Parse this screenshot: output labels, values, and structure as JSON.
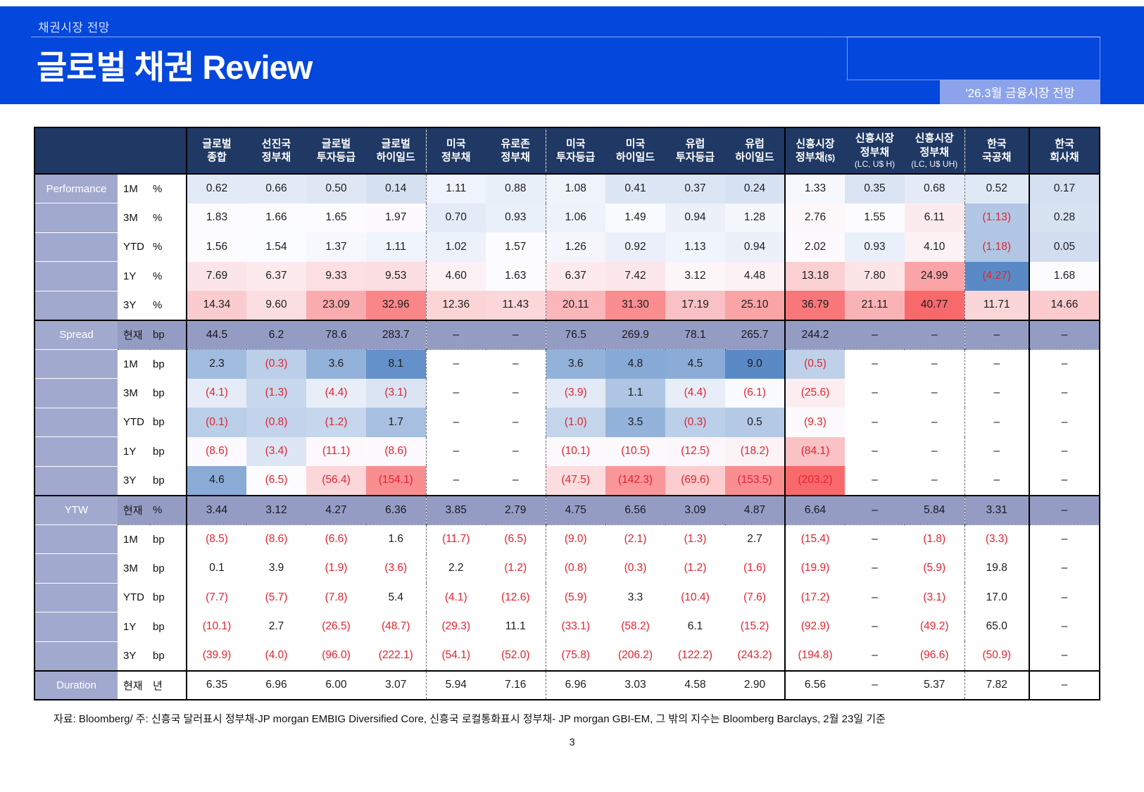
{
  "page": {
    "kicker": "채권시장 전망",
    "title": "글로벌 채권 Review",
    "badge": "'26.3월 금융시장 전망",
    "footnote": "자료: Bloomberg/ 주: 신흥국 달러표시 정부채-JP morgan EMBIG Diversified Core, 신흥국 로컬통화표시 정부채- JP morgan GBI-EM, 그 밖의 지수는 Bloomberg Barclays, 2월 23일 기준",
    "page_number": "3"
  },
  "colors": {
    "header_blue": "#0347DC",
    "badge_blue": "#8CA3EC",
    "table_header_navy": "#1F3864",
    "label_lavender": "#A2A9CE",
    "snapshot_lavender": "#959CC4",
    "negative_red": "#E32430",
    "scale_blue": "#5A8AC6",
    "scale_white": "#FCFCFF",
    "scale_red": "#F8696B"
  },
  "table": {
    "columns": [
      {
        "lines": [
          "글로벌",
          "종합"
        ]
      },
      {
        "lines": [
          "선진국",
          "정부채"
        ]
      },
      {
        "lines": [
          "글로벌",
          "투자등급"
        ]
      },
      {
        "lines": [
          "글로벌",
          "하이일드"
        ]
      },
      {
        "lines": [
          "미국",
          "정부채"
        ]
      },
      {
        "lines": [
          "유로존",
          "정부채"
        ]
      },
      {
        "lines": [
          "미국",
          "투자등급"
        ]
      },
      {
        "lines": [
          "미국",
          "하이일드"
        ]
      },
      {
        "lines": [
          "유럽",
          "투자등급"
        ]
      },
      {
        "lines": [
          "유럽",
          "하이일드"
        ]
      },
      {
        "lines": [
          "신흥시장",
          "정부채"
        ],
        "note_inline": "($)"
      },
      {
        "lines": [
          "신흥시장",
          "정부채"
        ],
        "subnote": "(LC, U$ H)"
      },
      {
        "lines": [
          "신흥시장",
          "정부채"
        ],
        "subnote": "(LC, U$ UH)"
      },
      {
        "lines": [
          "한국",
          "국공채"
        ]
      },
      {
        "lines": [
          "한국",
          "회사채"
        ]
      }
    ],
    "sections": [
      {
        "name": "Performance",
        "heatmap": {
          "min": -4.27,
          "mid": 1.56,
          "max": 40.77,
          "min_color": "#5A8AC6",
          "mid_color": "#FCFCFF",
          "max_color": "#F8696B"
        },
        "rows": [
          {
            "period": "1M",
            "unit": "%",
            "values": [
              "0.62",
              "0.66",
              "0.50",
              "0.14",
              "1.11",
              "0.88",
              "1.08",
              "0.41",
              "0.37",
              "0.24",
              "1.33",
              "0.35",
              "0.68",
              "0.52",
              "0.17"
            ]
          },
          {
            "period": "3M",
            "unit": "%",
            "values": [
              "1.83",
              "1.66",
              "1.65",
              "1.97",
              "0.70",
              "0.93",
              "1.06",
              "1.49",
              "0.94",
              "1.28",
              "2.76",
              "1.55",
              "6.11",
              "(1.13)",
              "0.28"
            ]
          },
          {
            "period": "YTD",
            "unit": "%",
            "values": [
              "1.56",
              "1.54",
              "1.37",
              "1.11",
              "1.02",
              "1.57",
              "1.26",
              "0.92",
              "1.13",
              "0.94",
              "2.02",
              "0.93",
              "4.10",
              "(1.18)",
              "0.05"
            ]
          },
          {
            "period": "1Y",
            "unit": "%",
            "values": [
              "7.69",
              "6.37",
              "9.33",
              "9.53",
              "4.60",
              "1.63",
              "6.37",
              "7.42",
              "3.12",
              "4.48",
              "13.18",
              "7.80",
              "24.99",
              "(4.27)",
              "1.68"
            ]
          },
          {
            "period": "3Y",
            "unit": "%",
            "values": [
              "14.34",
              "9.60",
              "23.09",
              "32.96",
              "12.36",
              "11.43",
              "20.11",
              "31.30",
              "17.19",
              "25.10",
              "36.79",
              "21.11",
              "40.77",
              "11.71",
              "14.66"
            ]
          }
        ]
      },
      {
        "name": "Spread",
        "heatmap": {
          "min": -203.2,
          "mid": -6.3,
          "max": 9.0,
          "min_color": "#F8696B",
          "mid_color": "#FCFCFF",
          "max_color": "#5A8AC6"
        },
        "rows": [
          {
            "period": "현재",
            "unit": "bp",
            "snapshot": true,
            "values": [
              "44.5",
              "6.2",
              "78.6",
              "283.7",
              "–",
              "–",
              "76.5",
              "269.9",
              "78.1",
              "265.7",
              "244.2",
              "–",
              "–",
              "–",
              "–"
            ]
          },
          {
            "period": "1M",
            "unit": "bp",
            "values": [
              "2.3",
              "(0.3)",
              "3.6",
              "8.1",
              "–",
              "–",
              "3.6",
              "4.8",
              "4.5",
              "9.0",
              "(0.5)",
              "–",
              "–",
              "–",
              "–"
            ]
          },
          {
            "period": "3M",
            "unit": "bp",
            "values": [
              "(4.1)",
              "(1.3)",
              "(4.4)",
              "(3.1)",
              "–",
              "–",
              "(3.9)",
              "1.1",
              "(4.4)",
              "(6.1)",
              "(25.6)",
              "–",
              "–",
              "–",
              "–"
            ]
          },
          {
            "period": "YTD",
            "unit": "bp",
            "values": [
              "(0.1)",
              "(0.8)",
              "(1.2)",
              "1.7",
              "–",
              "–",
              "(1.0)",
              "3.5",
              "(0.3)",
              "0.5",
              "(9.3)",
              "–",
              "–",
              "–",
              "–"
            ]
          },
          {
            "period": "1Y",
            "unit": "bp",
            "values": [
              "(8.6)",
              "(3.4)",
              "(11.1)",
              "(8.6)",
              "–",
              "–",
              "(10.1)",
              "(10.5)",
              "(12.5)",
              "(18.2)",
              "(84.1)",
              "–",
              "–",
              "–",
              "–"
            ]
          },
          {
            "period": "3Y",
            "unit": "bp",
            "values": [
              "4.6",
              "(6.5)",
              "(56.4)",
              "(154.1)",
              "–",
              "–",
              "(47.5)",
              "(142.3)",
              "(69.6)",
              "(153.5)",
              "(203.2)",
              "–",
              "–",
              "–",
              "–"
            ]
          }
        ]
      },
      {
        "name": "YTW",
        "heatmap": null,
        "rows": [
          {
            "period": "현재",
            "unit": "%",
            "snapshot": true,
            "values": [
              "3.44",
              "3.12",
              "4.27",
              "6.36",
              "3.85",
              "2.79",
              "4.75",
              "6.56",
              "3.09",
              "4.87",
              "6.64",
              "–",
              "5.84",
              "3.31",
              "–"
            ]
          },
          {
            "period": "1M",
            "unit": "bp",
            "values": [
              "(8.5)",
              "(8.6)",
              "(6.6)",
              "1.6",
              "(11.7)",
              "(6.5)",
              "(9.0)",
              "(2.1)",
              "(1.3)",
              "2.7",
              "(15.4)",
              "–",
              "(1.8)",
              "(3.3)",
              "–"
            ]
          },
          {
            "period": "3M",
            "unit": "bp",
            "values": [
              "0.1",
              "3.9",
              "(1.9)",
              "(3.6)",
              "2.2",
              "(1.2)",
              "(0.8)",
              "(0.3)",
              "(1.2)",
              "(1.6)",
              "(19.9)",
              "–",
              "(5.9)",
              "19.8",
              "–"
            ]
          },
          {
            "period": "YTD",
            "unit": "bp",
            "values": [
              "(7.7)",
              "(5.7)",
              "(7.8)",
              "5.4",
              "(4.1)",
              "(12.6)",
              "(5.9)",
              "3.3",
              "(10.4)",
              "(7.6)",
              "(17.2)",
              "–",
              "(3.1)",
              "17.0",
              "–"
            ]
          },
          {
            "period": "1Y",
            "unit": "bp",
            "values": [
              "(10.1)",
              "2.7",
              "(26.5)",
              "(48.7)",
              "(29.3)",
              "11.1",
              "(33.1)",
              "(58.2)",
              "6.1",
              "(15.2)",
              "(92.9)",
              "–",
              "(49.2)",
              "65.0",
              "–"
            ]
          },
          {
            "period": "3Y",
            "unit": "bp",
            "values": [
              "(39.9)",
              "(4.0)",
              "(96.0)",
              "(222.1)",
              "(54.1)",
              "(52.0)",
              "(75.8)",
              "(206.2)",
              "(122.2)",
              "(243.2)",
              "(194.8)",
              "–",
              "(96.6)",
              "(50.9)",
              "–"
            ]
          }
        ]
      },
      {
        "name": "Duration",
        "heatmap": null,
        "rows": [
          {
            "period": "현재",
            "unit": "년",
            "values": [
              "6.35",
              "6.96",
              "6.00",
              "3.07",
              "5.94",
              "7.16",
              "6.96",
              "3.03",
              "4.58",
              "2.90",
              "6.56",
              "–",
              "5.37",
              "7.82",
              "–"
            ]
          }
        ]
      }
    ]
  }
}
